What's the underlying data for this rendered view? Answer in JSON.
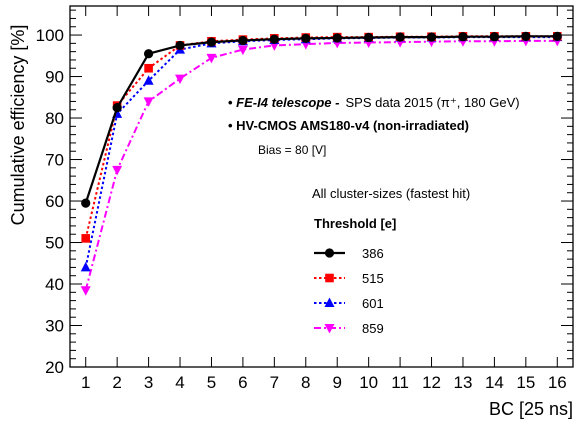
{
  "chart_data": {
    "type": "line",
    "xlabel": "BC [25 ns]",
    "ylabel": "Cumulative efficiency [%]",
    "xlim": [
      0.5,
      16.5
    ],
    "ylim": [
      20,
      107
    ],
    "x": [
      1,
      2,
      3,
      4,
      5,
      6,
      7,
      8,
      9,
      10,
      11,
      12,
      13,
      14,
      15,
      16
    ],
    "x_tick_labels": [
      "1",
      "2",
      "3",
      "4",
      "5",
      "6",
      "7",
      "8",
      "9",
      "10",
      "11",
      "12",
      "13",
      "14",
      "15",
      "16"
    ],
    "y_ticks": [
      20,
      30,
      40,
      50,
      60,
      70,
      80,
      90,
      100
    ],
    "grid": false,
    "legend_title": "Threshold [e]",
    "legend_placement": "right-middle",
    "annotations": {
      "telescope_prefix": "• ",
      "telescope_name": "FE-I4 telescope -",
      "telescope_data": "SPS data 2015 (π⁺, 180 GeV)",
      "device": "• HV-CMOS AMS180-v4 (non-irradiated)",
      "bias": "Bias = 80 [V]",
      "clusters": "All cluster-sizes (fastest hit)"
    },
    "series": [
      {
        "name": "386",
        "color": "#000000",
        "marker": "circle",
        "line": "solid",
        "values": [
          59.5,
          82.5,
          95.5,
          97.5,
          98.3,
          98.7,
          99.0,
          99.2,
          99.3,
          99.4,
          99.5,
          99.5,
          99.6,
          99.6,
          99.7,
          99.7
        ]
      },
      {
        "name": "515",
        "color": "#ff0000",
        "marker": "square",
        "line": "dotted",
        "values": [
          51.0,
          83.0,
          92.0,
          97.5,
          98.5,
          98.9,
          99.2,
          99.4,
          99.5,
          99.5,
          99.6,
          99.6,
          99.7,
          99.7,
          99.7,
          99.7
        ]
      },
      {
        "name": "601",
        "color": "#0000ff",
        "marker": "triangle-up",
        "line": "dotted",
        "values": [
          44.0,
          81.0,
          89.0,
          96.5,
          98.0,
          98.5,
          98.8,
          99.0,
          99.2,
          99.3,
          99.4,
          99.4,
          99.5,
          99.5,
          99.5,
          99.5
        ]
      },
      {
        "name": "859",
        "color": "#ff00ff",
        "marker": "triangle-down",
        "line": "dashdot",
        "values": [
          38.5,
          67.5,
          84.0,
          89.5,
          94.5,
          96.5,
          97.5,
          97.8,
          98.1,
          98.2,
          98.3,
          98.4,
          98.5,
          98.5,
          98.6,
          98.6
        ]
      }
    ]
  }
}
